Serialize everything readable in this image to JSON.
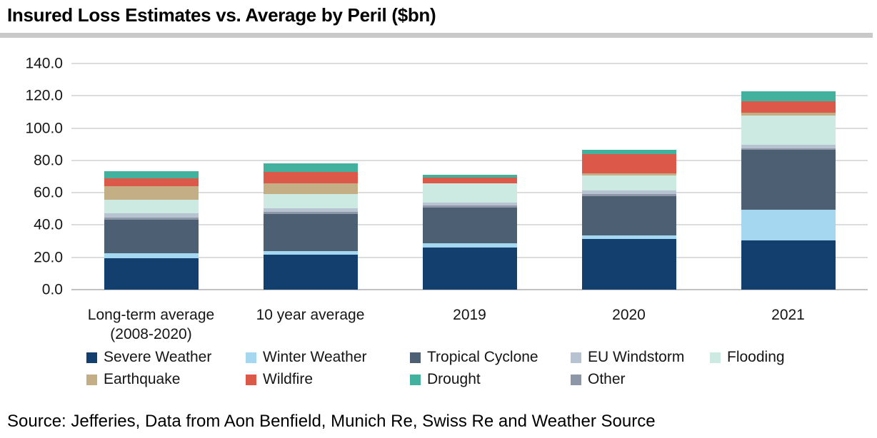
{
  "page": {
    "title": "Insured Loss Estimates vs. Average by Peril ($bn)",
    "source_note": "Source: Jefferies, Data from Aon Benfield, Munich Re, Swiss Re and Weather Source"
  },
  "chart_data": {
    "type": "bar",
    "stacked": true,
    "title": "Insured Loss Estimates vs. Average by Peril ($bn)",
    "unit": "$bn",
    "categories": [
      "Long-term average\n(2008-2020)",
      "10 year average",
      "2019",
      "2020",
      "2021"
    ],
    "series": [
      {
        "name": "Severe Weather",
        "color": "#123f6e",
        "values": [
          19.5,
          21.5,
          26.0,
          31.5,
          30.5
        ]
      },
      {
        "name": "Winter Weather",
        "color": "#a5d7f0",
        "values": [
          3.0,
          2.5,
          2.5,
          2.0,
          19.0
        ]
      },
      {
        "name": "Tropical Cyclone",
        "color": "#4c5f73",
        "values": [
          21.0,
          23.0,
          22.5,
          24.5,
          37.0
        ]
      },
      {
        "name": "EU Windstorm",
        "color": "#b7c3d1",
        "values": [
          3.0,
          2.5,
          2.0,
          2.5,
          2.0
        ]
      },
      {
        "name": "Flooding",
        "color": "#cce9e2",
        "values": [
          8.0,
          8.5,
          12.0,
          9.0,
          18.5
        ]
      },
      {
        "name": "Earthquake",
        "color": "#c3ae85",
        "values": [
          8.5,
          7.0,
          0.0,
          1.5,
          1.5
        ]
      },
      {
        "name": "Wildfire",
        "color": "#dc5848",
        "values": [
          5.0,
          7.0,
          3.5,
          12.0,
          7.0
        ]
      },
      {
        "name": "Drought",
        "color": "#42b19e",
        "values": [
          4.5,
          5.0,
          1.5,
          2.5,
          6.5
        ]
      },
      {
        "name": "Other",
        "color": "#8d97a8",
        "values": [
          1.0,
          1.0,
          1.0,
          1.0,
          1.0
        ]
      }
    ],
    "stack_order_bottom_to_top": [
      "Severe Weather",
      "Winter Weather",
      "Tropical Cyclone",
      "Other",
      "EU Windstorm",
      "Flooding",
      "Earthquake",
      "Wildfire",
      "Drought"
    ],
    "approx_totals": [
      73.5,
      78.0,
      71.0,
      86.5,
      123.0
    ],
    "ylim": [
      0,
      140
    ],
    "ytick_labels": [
      "0.0",
      "20.0",
      "40.0",
      "60.0",
      "80.0",
      "100.0",
      "120.0",
      "140.0"
    ],
    "xlabel": "",
    "ylabel": "",
    "grid": true,
    "legend_position": "bottom"
  }
}
